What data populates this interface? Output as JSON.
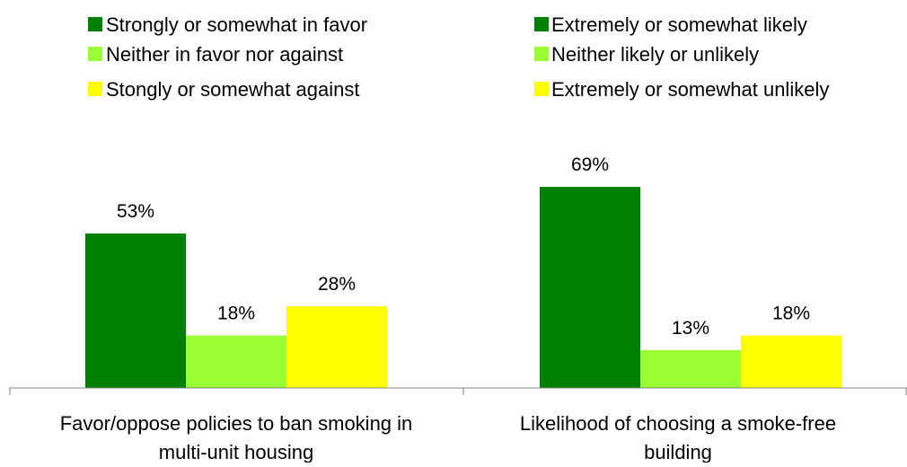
{
  "chart_data": {
    "type": "bar",
    "grouped": true,
    "groups": [
      {
        "category": "Favor/oppose policies to ban smoking in multi-unit housing",
        "category_lines": [
          "Favor/oppose policies to ban smoking in",
          "multi-unit housing"
        ],
        "bars": [
          {
            "legend": "Strongly or somewhat in favor",
            "value": 53,
            "label": "53%",
            "color": "#008000"
          },
          {
            "legend": "Neither in favor nor against",
            "value": 18,
            "label": "18%",
            "color": "#99FF33"
          },
          {
            "legend": "Stongly or somewhat against",
            "value": 28,
            "label": "28%",
            "color": "#FFFF00"
          }
        ]
      },
      {
        "category": "Likelihood of choosing a smoke-free building",
        "category_lines": [
          "Likelihood of choosing a smoke-free",
          "building"
        ],
        "bars": [
          {
            "legend": "Extremely or somewhat likely",
            "value": 69,
            "label": "69%",
            "color": "#008000"
          },
          {
            "legend": "Neither likely or unlikely",
            "value": 13,
            "label": "13%",
            "color": "#99FF33"
          },
          {
            "legend": "Extremely or somewhat unlikely",
            "value": 18,
            "label": "18%",
            "color": "#FFFF00"
          }
        ]
      }
    ],
    "ylim": [
      0,
      80
    ],
    "grid": false,
    "legend_placement": "top",
    "title": "",
    "xlabel": "",
    "ylabel": ""
  }
}
